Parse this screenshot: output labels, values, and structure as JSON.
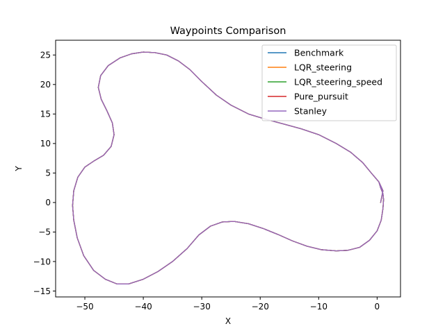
{
  "chart_data": {
    "type": "line",
    "title": "Waypoints Comparison",
    "xlabel": "X",
    "ylabel": "Y",
    "xlim": [
      -55,
      4
    ],
    "ylim": [
      -16,
      27.5
    ],
    "xticks": [
      -50,
      -40,
      -30,
      -20,
      -10,
      0
    ],
    "yticks": [
      -15,
      -10,
      -5,
      0,
      5,
      10,
      15,
      20,
      25
    ],
    "grid": false,
    "legend_position": "top-right",
    "path": [
      [
        0.6,
        0.0
      ],
      [
        1.0,
        2.0
      ],
      [
        0.3,
        3.5
      ],
      [
        -1.0,
        5.0
      ],
      [
        -2.5,
        6.8
      ],
      [
        -4.5,
        8.5
      ],
      [
        -7.0,
        10.0
      ],
      [
        -10.0,
        11.5
      ],
      [
        -13.0,
        12.5
      ],
      [
        -16.0,
        13.3
      ],
      [
        -19.0,
        14.1
      ],
      [
        -22.0,
        15.0
      ],
      [
        -25.0,
        16.5
      ],
      [
        -27.5,
        18.2
      ],
      [
        -30.0,
        20.5
      ],
      [
        -32.0,
        22.5
      ],
      [
        -34.0,
        24.0
      ],
      [
        -36.0,
        25.0
      ],
      [
        -38.0,
        25.4
      ],
      [
        -40.0,
        25.5
      ],
      [
        -42.0,
        25.2
      ],
      [
        -44.0,
        24.5
      ],
      [
        -46.0,
        23.2
      ],
      [
        -47.3,
        21.5
      ],
      [
        -47.7,
        19.5
      ],
      [
        -47.2,
        17.5
      ],
      [
        -46.2,
        15.5
      ],
      [
        -45.3,
        13.5
      ],
      [
        -45.0,
        11.5
      ],
      [
        -45.5,
        9.5
      ],
      [
        -46.8,
        8.0
      ],
      [
        -48.5,
        7.0
      ],
      [
        -50.0,
        6.0
      ],
      [
        -51.2,
        4.3
      ],
      [
        -51.9,
        2.0
      ],
      [
        -52.1,
        -0.5
      ],
      [
        -51.9,
        -3.0
      ],
      [
        -51.3,
        -6.0
      ],
      [
        -50.2,
        -9.0
      ],
      [
        -48.5,
        -11.5
      ],
      [
        -46.5,
        -13.0
      ],
      [
        -44.5,
        -13.8
      ],
      [
        -42.5,
        -13.8
      ],
      [
        -40.0,
        -13.0
      ],
      [
        -37.5,
        -11.7
      ],
      [
        -35.0,
        -10.0
      ],
      [
        -32.5,
        -7.8
      ],
      [
        -30.5,
        -5.5
      ],
      [
        -28.5,
        -4.0
      ],
      [
        -26.5,
        -3.3
      ],
      [
        -24.5,
        -3.2
      ],
      [
        -22.0,
        -3.6
      ],
      [
        -19.5,
        -4.4
      ],
      [
        -17.0,
        -5.4
      ],
      [
        -14.5,
        -6.5
      ],
      [
        -12.0,
        -7.4
      ],
      [
        -9.5,
        -8.0
      ],
      [
        -7.0,
        -8.2
      ],
      [
        -5.0,
        -8.1
      ],
      [
        -3.0,
        -7.6
      ],
      [
        -1.3,
        -6.4
      ],
      [
        0.0,
        -4.8
      ],
      [
        0.7,
        -3.0
      ],
      [
        1.0,
        -1.0
      ],
      [
        1.1,
        0.5
      ],
      [
        1.0,
        1.5
      ],
      [
        0.6,
        2.5
      ],
      [
        0.3,
        3.5
      ]
    ],
    "series": [
      {
        "name": "Benchmark",
        "color": "#1f77b4"
      },
      {
        "name": "LQR_steering",
        "color": "#ff7f0e"
      },
      {
        "name": "LQR_steering_speed",
        "color": "#2ca02c"
      },
      {
        "name": "Pure_pursuit",
        "color": "#d62728"
      },
      {
        "name": "Stanley",
        "color": "#9467bd"
      }
    ]
  }
}
